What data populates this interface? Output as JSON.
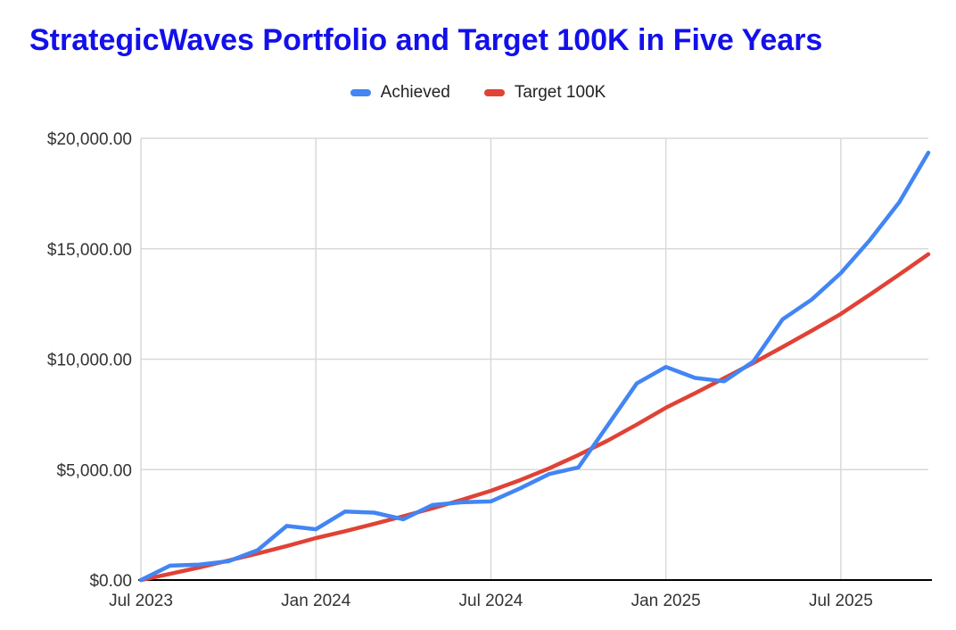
{
  "title": "StrategicWaves Portfolio and Target 100K in Five Years",
  "title_color": "#1310EA",
  "legend": {
    "items": [
      {
        "label": "Achieved",
        "color": "#4285F4"
      },
      {
        "label": "Target 100K",
        "color": "#E04236"
      }
    ]
  },
  "chart_data": {
    "type": "line",
    "title": "StrategicWaves Portfolio and Target 100K in Five Years",
    "x": [
      "Jul 2023",
      "Aug 2023",
      "Sep 2023",
      "Oct 2023",
      "Nov 2023",
      "Dec 2023",
      "Jan 2024",
      "Feb 2024",
      "Mar 2024",
      "Apr 2024",
      "May 2024",
      "Jun 2024",
      "Jul 2024",
      "Aug 2024",
      "Sep 2024",
      "Oct 2024",
      "Nov 2024",
      "Dec 2024",
      "Jan 2025",
      "Feb 2025",
      "Mar 2025",
      "Apr 2025",
      "May 2025",
      "Jun 2025",
      "Jul 2025",
      "Aug 2025",
      "Sep 2025",
      "Oct 2025"
    ],
    "series": [
      {
        "name": "Achieved",
        "color": "#4285F4",
        "values": [
          0,
          650,
          700,
          850,
          1350,
          2450,
          2300,
          3100,
          3050,
          2750,
          3400,
          3520,
          3560,
          4150,
          4800,
          5100,
          7000,
          8900,
          9650,
          9150,
          9000,
          9900,
          11800,
          12700,
          13900,
          15400,
          17100,
          19350
        ]
      },
      {
        "name": "Target 100K",
        "color": "#E04236",
        "values": [
          0,
          280,
          570,
          880,
          1200,
          1540,
          1900,
          2210,
          2540,
          2890,
          3250,
          3630,
          4040,
          4520,
          5060,
          5660,
          6310,
          7040,
          7800,
          8460,
          9140,
          9830,
          10550,
          11290,
          12050,
          12930,
          13830,
          14750
        ]
      }
    ],
    "xlabel": "",
    "ylabel": "",
    "ylim": [
      0,
      20000
    ],
    "y_ticks": [
      0,
      5000,
      10000,
      15000,
      20000
    ],
    "y_tick_labels": [
      "$0.00",
      "$5,000.00",
      "$10,000.00",
      "$15,000.00",
      "$20,000.00"
    ],
    "x_ticks": [
      {
        "index": 0,
        "label": "Jul 2023"
      },
      {
        "index": 6,
        "label": "Jan 2024"
      },
      {
        "index": 12,
        "label": "Jul 2024"
      },
      {
        "index": 18,
        "label": "Jan 2025"
      },
      {
        "index": 24,
        "label": "Jul 2025"
      }
    ],
    "grid": true,
    "legend_position": "top"
  },
  "colors": {
    "background": "#FFFFFF",
    "grid": "#D9D9D9",
    "axis": "#000000",
    "tick_label": "#333333"
  }
}
